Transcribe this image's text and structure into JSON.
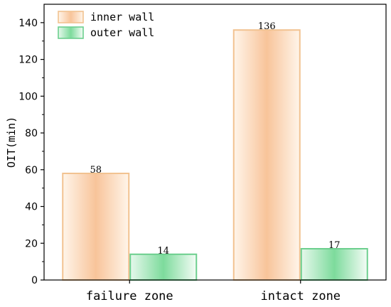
{
  "chart_data": {
    "type": "bar",
    "categories": [
      "failure zone",
      "intact zone"
    ],
    "series": [
      {
        "name": "inner wall",
        "values": [
          58,
          136
        ]
      },
      {
        "name": "outer wall",
        "values": [
          14,
          17
        ]
      }
    ],
    "ylabel": "OIT(min)",
    "xlabel": "",
    "ylim": [
      0,
      150
    ],
    "yticks": [
      0,
      20,
      40,
      60,
      80,
      100,
      120,
      140
    ],
    "grid": false,
    "legend_position": "top-left",
    "data_labels": [
      [
        "58",
        "136"
      ],
      [
        "14",
        "17"
      ]
    ]
  },
  "colors": {
    "inner_stroke": "#f2c290",
    "inner_fill": "#f8c49a",
    "outer_stroke": "#6ccf8e",
    "outer_fill": "#7ddb9c"
  }
}
